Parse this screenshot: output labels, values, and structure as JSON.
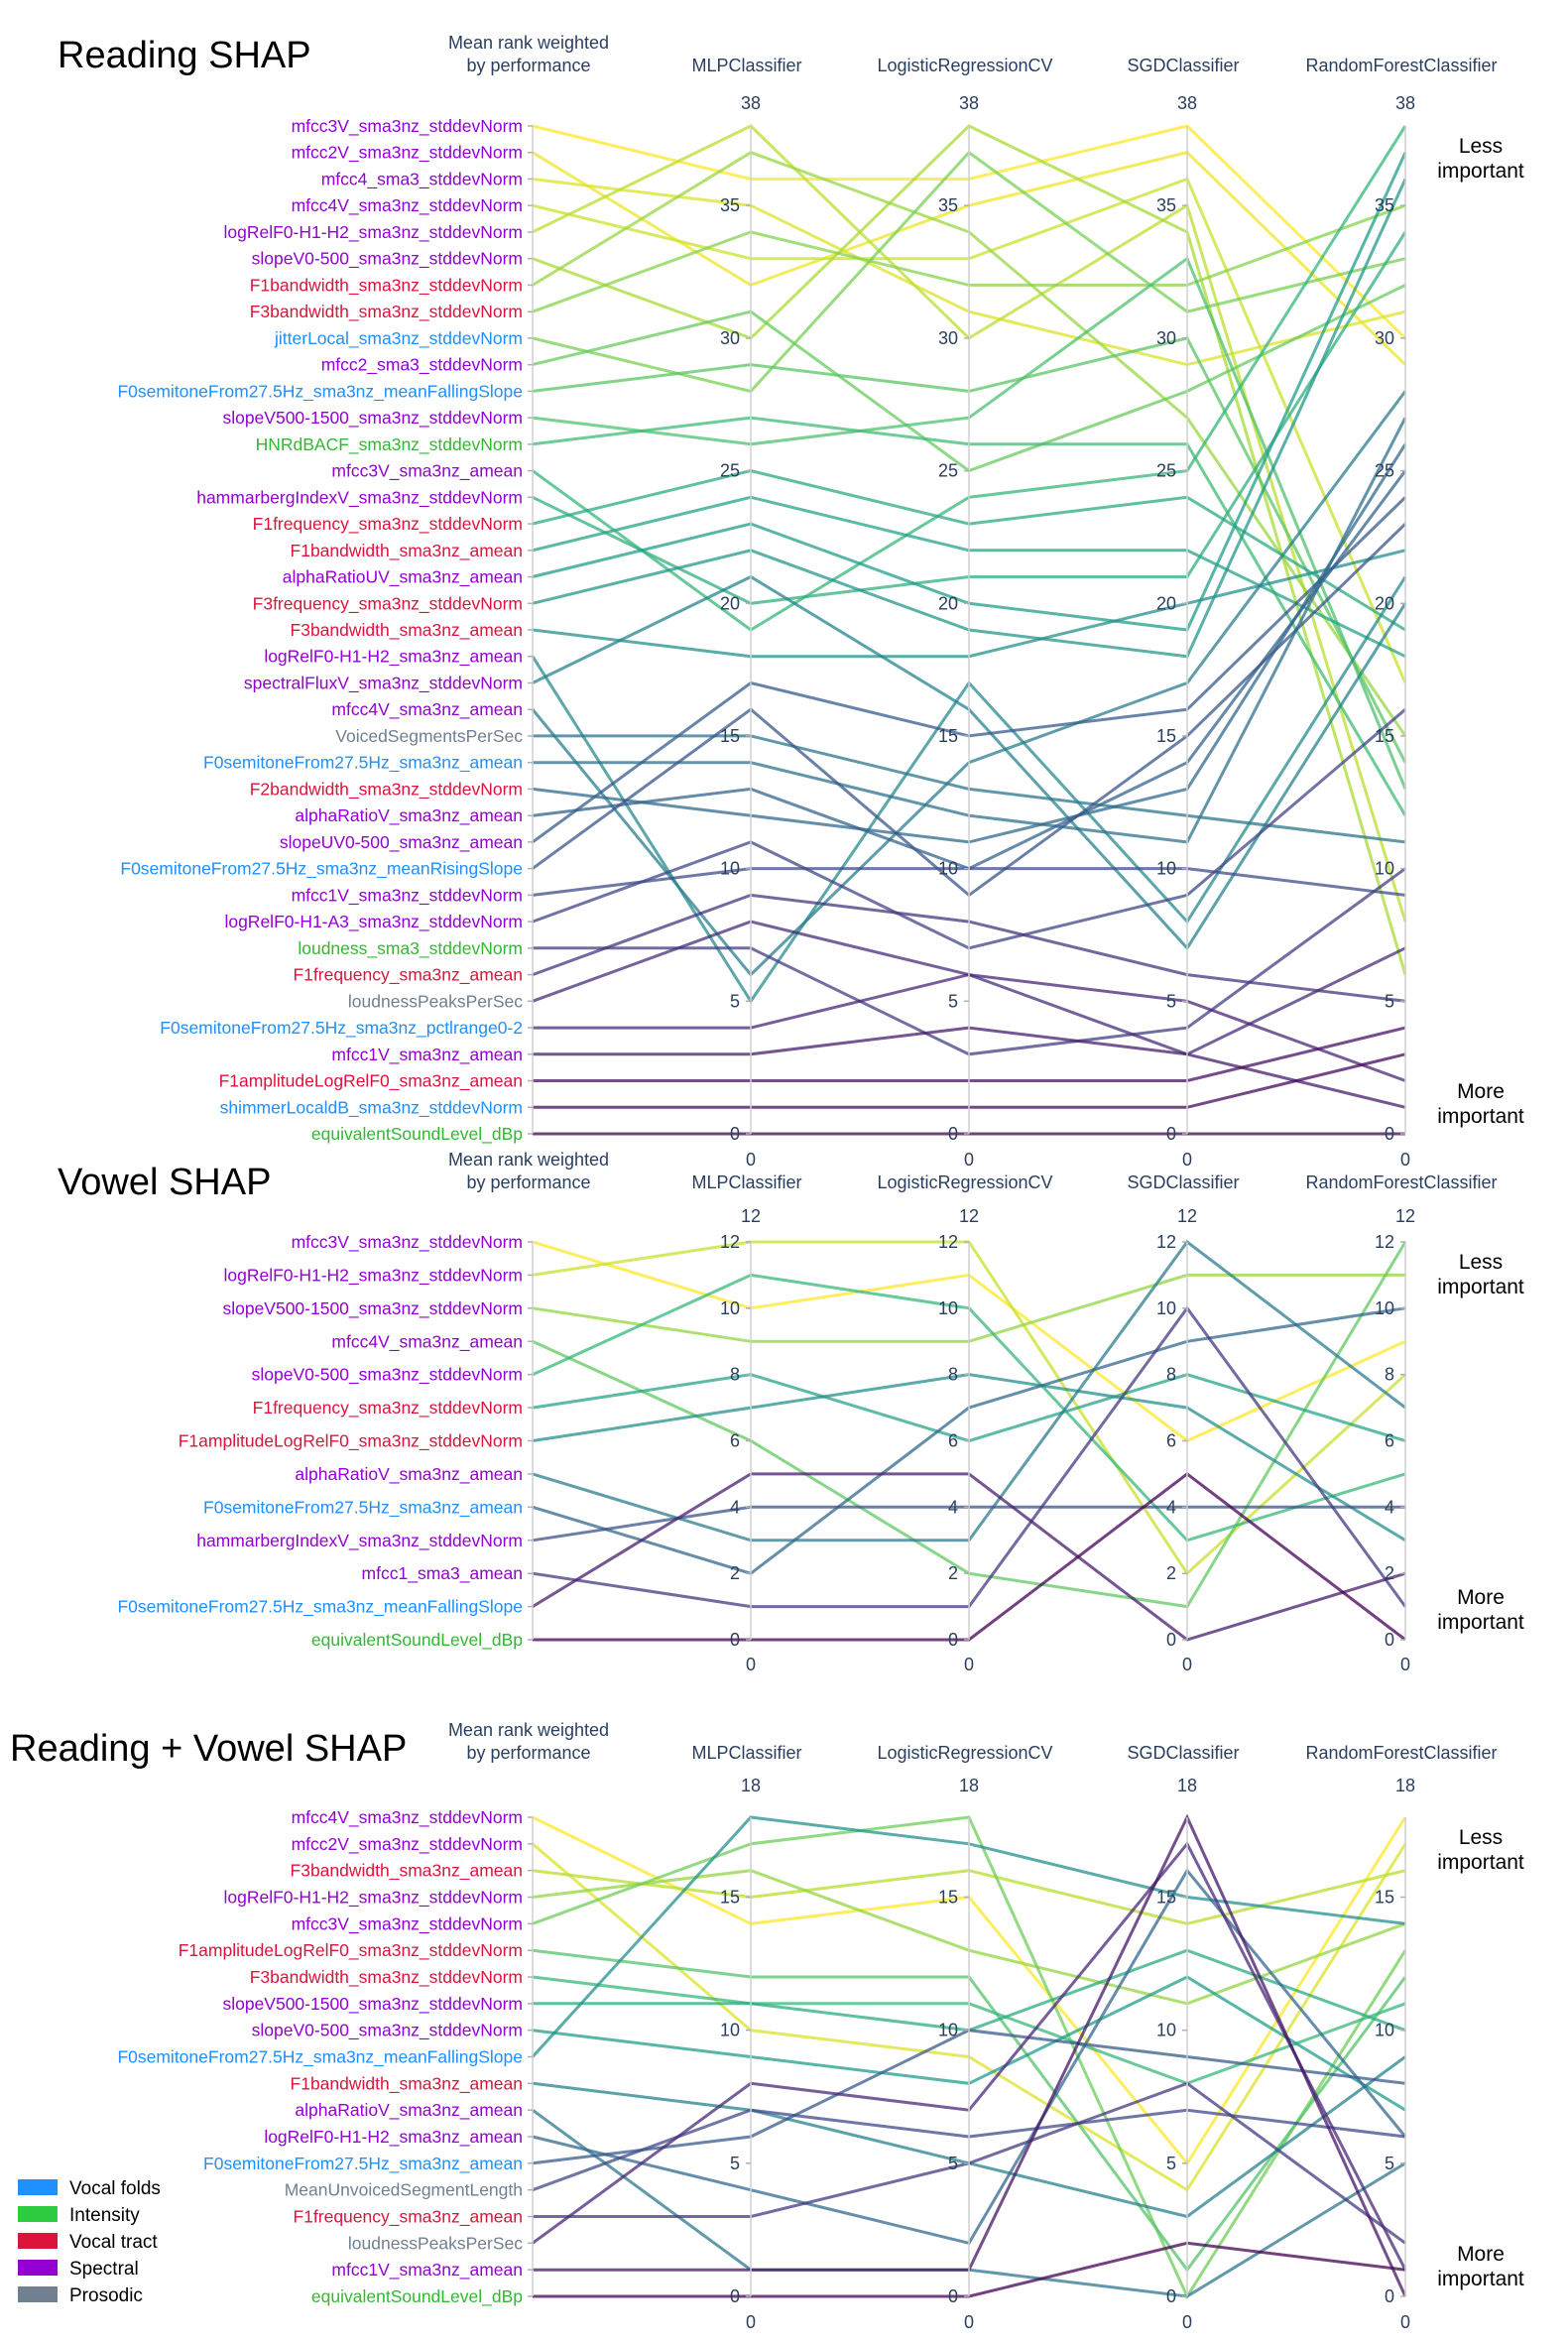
{
  "chart_data": [
    {
      "type": "parallel-coordinates",
      "title": "Reading SHAP",
      "axes": [
        "Mean rank weighted\nby performance",
        "MLPClassifier",
        "LogisticRegressionCV",
        "SGDClassifier",
        "RandomForestClassifier"
      ],
      "range": [
        0,
        38
      ],
      "ticks": [
        0,
        5,
        10,
        15,
        20,
        25,
        30,
        35
      ],
      "annotations": [
        "Less\nimportant",
        "More\nimportant"
      ],
      "features": [
        {
          "name": "mfcc3V_sma3nz_stddevNorm",
          "group": "Spectral",
          "ranks": [
            38,
            36,
            36,
            38,
            30
          ]
        },
        {
          "name": "mfcc2V_sma3nz_stddevNorm",
          "group": "Spectral",
          "ranks": [
            37,
            32,
            35,
            37,
            29
          ]
        },
        {
          "name": "mfcc4_sma3_stddevNorm",
          "group": "Spectral",
          "ranks": [
            36,
            35,
            31,
            29,
            31
          ]
        },
        {
          "name": "mfcc4V_sma3nz_stddevNorm",
          "group": "Spectral",
          "ranks": [
            35,
            33,
            33,
            36,
            17
          ]
        },
        {
          "name": "logRelF0-H1-H2_sma3nz_stddevNorm",
          "group": "Spectral",
          "ranks": [
            34,
            38,
            30,
            35,
            8
          ]
        },
        {
          "name": "slopeV0-500_sma3nz_stddevNorm",
          "group": "Spectral",
          "ranks": [
            33,
            30,
            38,
            34,
            6
          ]
        },
        {
          "name": "F1bandwidth_sma3nz_stddevNorm",
          "group": "Vocal tract",
          "ranks": [
            32,
            37,
            34,
            27,
            15
          ]
        },
        {
          "name": "F3bandwidth_sma3nz_stddevNorm",
          "group": "Vocal tract",
          "ranks": [
            31,
            34,
            32,
            32,
            35
          ]
        },
        {
          "name": "jitterLocal_sma3nz_stddevNorm",
          "group": "Vocal folds",
          "ranks": [
            30,
            28,
            37,
            31,
            33
          ]
        },
        {
          "name": "mfcc2_sma3_stddevNorm",
          "group": "Spectral",
          "ranks": [
            29,
            31,
            25,
            28,
            32
          ]
        },
        {
          "name": "F0semitoneFrom27.5Hz_sma3nz_meanFallingSlope",
          "group": "Vocal folds",
          "ranks": [
            28,
            29,
            28,
            30,
            14
          ]
        },
        {
          "name": "slopeV500-1500_sma3nz_stddevNorm",
          "group": "Spectral",
          "ranks": [
            27,
            26,
            27,
            33,
            13
          ]
        },
        {
          "name": "HNRdBACF_sma3nz_stddevNorm",
          "group": "Intensity",
          "ranks": [
            26,
            27,
            26,
            26,
            12
          ]
        },
        {
          "name": "mfcc3V_sma3nz_amean",
          "group": "Spectral",
          "ranks": [
            25,
            19,
            24,
            25,
            38
          ]
        },
        {
          "name": "hammarbergIndexV_sma3nz_stddevNorm",
          "group": "Spectral",
          "ranks": [
            24,
            20,
            21,
            21,
            34
          ]
        },
        {
          "name": "F1frequency_sma3nz_stddevNorm",
          "group": "Vocal tract",
          "ranks": [
            23,
            25,
            23,
            24,
            19
          ]
        },
        {
          "name": "F1bandwidth_sma3nz_amean",
          "group": "Vocal tract",
          "ranks": [
            22,
            24,
            22,
            22,
            18
          ]
        },
        {
          "name": "alphaRatioUV_sma3nz_amean",
          "group": "Spectral",
          "ranks": [
            21,
            23,
            20,
            19,
            37
          ]
        },
        {
          "name": "F3frequency_sma3nz_stddevNorm",
          "group": "Vocal tract",
          "ranks": [
            20,
            22,
            19,
            18,
            36
          ]
        },
        {
          "name": "F3bandwidth_sma3nz_amean",
          "group": "Vocal tract",
          "ranks": [
            19,
            18,
            18,
            20,
            22
          ]
        },
        {
          "name": "logRelF0-H1-H2_sma3nz_amean",
          "group": "Spectral",
          "ranks": [
            18,
            5,
            17,
            8,
            21
          ]
        },
        {
          "name": "spectralFluxV_sma3nz_stddevNorm",
          "group": "Spectral",
          "ranks": [
            17,
            21,
            16,
            7,
            20
          ]
        },
        {
          "name": "mfcc4V_sma3nz_amean",
          "group": "Spectral",
          "ranks": [
            16,
            6,
            14,
            17,
            28
          ]
        },
        {
          "name": "VoicedSegmentsPerSec",
          "group": "Prosodic",
          "ranks": [
            15,
            15,
            13,
            12,
            11
          ]
        },
        {
          "name": "F0semitoneFrom27.5Hz_sma3nz_amean",
          "group": "Vocal folds",
          "ranks": [
            14,
            14,
            12,
            11,
            27
          ]
        },
        {
          "name": "F2bandwidth_sma3nz_stddevNorm",
          "group": "Vocal tract",
          "ranks": [
            13,
            12,
            11,
            13,
            26
          ]
        },
        {
          "name": "alphaRatioV_sma3nz_amean",
          "group": "Spectral",
          "ranks": [
            12,
            13,
            10,
            14,
            25
          ]
        },
        {
          "name": "slopeUV0-500_sma3nz_amean",
          "group": "Spectral",
          "ranks": [
            11,
            17,
            15,
            16,
            24
          ]
        },
        {
          "name": "F0semitoneFrom27.5Hz_sma3nz_meanRisingSlope",
          "group": "Vocal folds",
          "ranks": [
            10,
            16,
            9,
            15,
            23
          ]
        },
        {
          "name": "mfcc1V_sma3nz_stddevNorm",
          "group": "Spectral",
          "ranks": [
            9,
            10,
            10,
            10,
            9
          ]
        },
        {
          "name": "logRelF0-H1-A3_sma3nz_stddevNorm",
          "group": "Spectral",
          "ranks": [
            8,
            11,
            7,
            9,
            16
          ]
        },
        {
          "name": "loudness_sma3_stddevNorm",
          "group": "Intensity",
          "ranks": [
            7,
            7,
            3,
            4,
            10
          ]
        },
        {
          "name": "F1frequency_sma3nz_amean",
          "group": "Vocal tract",
          "ranks": [
            6,
            9,
            8,
            6,
            5
          ]
        },
        {
          "name": "loudnessPeaksPerSec",
          "group": "Prosodic",
          "ranks": [
            5,
            8,
            6,
            3,
            7
          ]
        },
        {
          "name": "F0semitoneFrom27.5Hz_sma3nz_pctlrange0-2",
          "group": "Vocal folds",
          "ranks": [
            4,
            4,
            6,
            5,
            2
          ]
        },
        {
          "name": "mfcc1V_sma3nz_amean",
          "group": "Spectral",
          "ranks": [
            3,
            3,
            4,
            3,
            1
          ]
        },
        {
          "name": "F1amplitudeLogRelF0_sma3nz_amean",
          "group": "Vocal tract",
          "ranks": [
            2,
            2,
            2,
            2,
            4
          ]
        },
        {
          "name": "shimmerLocaldB_sma3nz_stddevNorm",
          "group": "Vocal folds",
          "ranks": [
            1,
            1,
            1,
            1,
            3
          ]
        },
        {
          "name": "equivalentSoundLevel_dBp",
          "group": "Intensity",
          "ranks": [
            0,
            0,
            0,
            0,
            0
          ]
        }
      ]
    },
    {
      "type": "parallel-coordinates",
      "title": "Vowel SHAP",
      "axes": [
        "Mean rank weighted\nby performance",
        "MLPClassifier",
        "LogisticRegressionCV",
        "SGDClassifier",
        "RandomForestClassifier"
      ],
      "range": [
        0,
        12
      ],
      "ticks": [
        0,
        2,
        4,
        6,
        8,
        10,
        12
      ],
      "annotations": [
        "Less\nimportant",
        "More\nimportant"
      ],
      "features": [
        {
          "name": "mfcc3V_sma3nz_stddevNorm",
          "group": "Spectral",
          "ranks": [
            12,
            10,
            11,
            6,
            9
          ]
        },
        {
          "name": "logRelF0-H1-H2_sma3nz_stddevNorm",
          "group": "Spectral",
          "ranks": [
            11,
            12,
            12,
            2,
            8
          ]
        },
        {
          "name": "slopeV500-1500_sma3nz_stddevNorm",
          "group": "Spectral",
          "ranks": [
            10,
            9,
            9,
            11,
            11
          ]
        },
        {
          "name": "mfcc4V_sma3nz_amean",
          "group": "Spectral",
          "ranks": [
            9,
            6,
            2,
            1,
            12
          ]
        },
        {
          "name": "slopeV0-500_sma3nz_stddevNorm",
          "group": "Spectral",
          "ranks": [
            8,
            11,
            10,
            3,
            5
          ]
        },
        {
          "name": "F1frequency_sma3nz_stddevNorm",
          "group": "Vocal tract",
          "ranks": [
            7,
            8,
            6,
            8,
            6
          ]
        },
        {
          "name": "F1amplitudeLogRelF0_sma3nz_stddevNorm",
          "group": "Vocal tract",
          "ranks": [
            6,
            7,
            8,
            7,
            3
          ]
        },
        {
          "name": "alphaRatioV_sma3nz_amean",
          "group": "Spectral",
          "ranks": [
            5,
            3,
            3,
            12,
            7
          ]
        },
        {
          "name": "F0semitoneFrom27.5Hz_sma3nz_amean",
          "group": "Vocal folds",
          "ranks": [
            4,
            2,
            7,
            9,
            10
          ]
        },
        {
          "name": "hammarbergIndexV_sma3nz_stddevNorm",
          "group": "Spectral",
          "ranks": [
            3,
            4,
            4,
            4,
            4
          ]
        },
        {
          "name": "mfcc1_sma3_amean",
          "group": "Spectral",
          "ranks": [
            2,
            1,
            1,
            10,
            1
          ]
        },
        {
          "name": "F0semitoneFrom27.5Hz_sma3nz_meanFallingSlope",
          "group": "Vocal folds",
          "ranks": [
            1,
            5,
            5,
            0,
            2
          ]
        },
        {
          "name": "equivalentSoundLevel_dBp",
          "group": "Intensity",
          "ranks": [
            0,
            0,
            0,
            5,
            0
          ]
        }
      ]
    },
    {
      "type": "parallel-coordinates",
      "title": "Reading + Vowel SHAP",
      "axes": [
        "Mean rank weighted\nby performance",
        "MLPClassifier",
        "LogisticRegressionCV",
        "SGDClassifier",
        "RandomForestClassifier"
      ],
      "range": [
        0,
        18
      ],
      "ticks": [
        0,
        5,
        10,
        15
      ],
      "annotations": [
        "Less\nimportant",
        "More\nimportant"
      ],
      "features": [
        {
          "name": "mfcc4V_sma3nz_stddevNorm",
          "group": "Spectral",
          "ranks": [
            18,
            14,
            15,
            5,
            18
          ]
        },
        {
          "name": "mfcc2V_sma3nz_stddevNorm",
          "group": "Spectral",
          "ranks": [
            17,
            10,
            9,
            4,
            17
          ]
        },
        {
          "name": "F3bandwidth_sma3nz_amean",
          "group": "Vocal tract",
          "ranks": [
            16,
            15,
            16,
            14,
            16
          ]
        },
        {
          "name": "logRelF0-H1-H2_sma3nz_stddevNorm",
          "group": "Spectral",
          "ranks": [
            15,
            16,
            13,
            11,
            14
          ]
        },
        {
          "name": "mfcc3V_sma3nz_stddevNorm",
          "group": "Spectral",
          "ranks": [
            14,
            17,
            18,
            0,
            13
          ]
        },
        {
          "name": "F1amplitudeLogRelF0_sma3nz_stddevNorm",
          "group": "Vocal tract",
          "ranks": [
            13,
            12,
            12,
            1,
            12
          ]
        },
        {
          "name": "F3bandwidth_sma3nz_stddevNorm",
          "group": "Vocal tract",
          "ranks": [
            12,
            11,
            11,
            8,
            11
          ]
        },
        {
          "name": "slopeV500-1500_sma3nz_stddevNorm",
          "group": "Spectral",
          "ranks": [
            11,
            11,
            10,
            13,
            10
          ]
        },
        {
          "name": "slopeV0-500_sma3nz_stddevNorm",
          "group": "Spectral",
          "ranks": [
            10,
            9,
            8,
            12,
            7
          ]
        },
        {
          "name": "F0semitoneFrom27.5Hz_sma3nz_meanFallingSlope",
          "group": "Vocal folds",
          "ranks": [
            9,
            18,
            17,
            15,
            14
          ]
        },
        {
          "name": "F1bandwidth_sma3nz_amean",
          "group": "Vocal tract",
          "ranks": [
            8,
            7,
            5,
            3,
            9
          ]
        },
        {
          "name": "alphaRatioV_sma3nz_amean",
          "group": "Spectral",
          "ranks": [
            7,
            1,
            1,
            0,
            5
          ]
        },
        {
          "name": "logRelF0-H1-H2_sma3nz_amean",
          "group": "Spectral",
          "ranks": [
            6,
            4,
            2,
            16,
            6
          ]
        },
        {
          "name": "F0semitoneFrom27.5Hz_sma3nz_amean",
          "group": "Vocal folds",
          "ranks": [
            5,
            6,
            10,
            9,
            8
          ]
        },
        {
          "name": "MeanUnvoicedSegmentLength",
          "group": "Prosodic",
          "ranks": [
            4,
            7,
            6,
            7,
            6
          ]
        },
        {
          "name": "F1frequency_sma3nz_amean",
          "group": "Vocal tract",
          "ranks": [
            3,
            3,
            5,
            8,
            2
          ]
        },
        {
          "name": "loudnessPeaksPerSec",
          "group": "Prosodic",
          "ranks": [
            2,
            8,
            7,
            17,
            1
          ]
        },
        {
          "name": "mfcc1V_sma3nz_amean",
          "group": "Spectral",
          "ranks": [
            1,
            1,
            1,
            18,
            0
          ]
        },
        {
          "name": "equivalentSoundLevel_dBp",
          "group": "Intensity",
          "ranks": [
            0,
            0,
            0,
            2,
            1
          ]
        }
      ]
    }
  ],
  "legend": [
    {
      "label": "Vocal folds",
      "color": "#1e90ff"
    },
    {
      "label": "Intensity",
      "color": "#2ecc40"
    },
    {
      "label": "Vocal tract",
      "color": "#dc143c"
    },
    {
      "label": "Spectral",
      "color": "#9400d3"
    },
    {
      "label": "Prosodic",
      "color": "#708090"
    }
  ],
  "label_colors": {
    "Vocal folds": "#1e90ff",
    "Intensity": "#32b832",
    "Vocal tract": "#dc143c",
    "Spectral": "#9400d3",
    "Prosodic": "#708090"
  }
}
